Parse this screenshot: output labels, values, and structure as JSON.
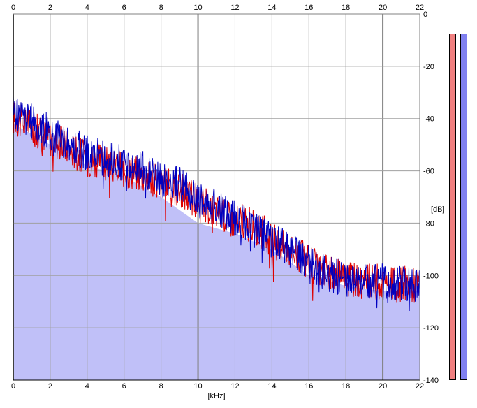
{
  "chart_data": {
    "type": "area",
    "xlabel": "[kHz]",
    "ylabel": "[dB]",
    "xlim": [
      0,
      22
    ],
    "ylim": [
      -140,
      0
    ],
    "x_ticks": [
      "0",
      "2",
      "4",
      "6",
      "8",
      "10",
      "12",
      "14",
      "16",
      "18",
      "20",
      "22"
    ],
    "y_ticks": [
      "0",
      "-20",
      "-40",
      "-60",
      "-80",
      "-100",
      "-120",
      "-140"
    ],
    "grid": true,
    "colors": {
      "left_channel": "#dd0000",
      "right_channel": "#0000c0",
      "fill": "#c0c0f8",
      "background": "#ffffff",
      "grid": "#a0a0a0",
      "major_grid": "#808080"
    },
    "series": [
      {
        "x": [
          0,
          0.5,
          1,
          1.5,
          2,
          2.5,
          3,
          3.5,
          4,
          4.5,
          5,
          5.5,
          6,
          6.5,
          7,
          7.5,
          8,
          8.5,
          9,
          9.5,
          10,
          10.5,
          11,
          11.5,
          12,
          12.5,
          13,
          13.5,
          14,
          14.5,
          15,
          15.5,
          16,
          16.5,
          17,
          17.5,
          18,
          18.5,
          19,
          19.5,
          20,
          20.5,
          21,
          21.5,
          22
        ],
        "y": [
          -40,
          -42,
          -44,
          -46,
          -48,
          -50,
          -52,
          -54,
          -56,
          -57,
          -58,
          -59,
          -60,
          -61,
          -62,
          -64,
          -66,
          -67,
          -68,
          -70,
          -73,
          -74,
          -76,
          -78,
          -80,
          -80,
          -82,
          -84,
          -87,
          -89,
          -91,
          -93,
          -96,
          -98,
          -100,
          -101,
          -102,
          -102,
          -103,
          -103,
          -103,
          -104,
          -104,
          -104,
          -104
        ]
      },
      {
        "x": [
          0,
          0.5,
          1,
          1.5,
          2,
          2.5,
          3,
          3.5,
          4,
          4.5,
          5,
          5.5,
          6,
          6.5,
          7,
          7.5,
          8,
          8.5,
          9,
          9.5,
          10,
          10.5,
          11,
          11.5,
          12,
          12.5,
          13,
          13.5,
          14,
          14.5,
          15,
          15.5,
          16,
          16.5,
          17,
          17.5,
          18,
          18.5,
          19,
          19.5,
          20,
          20.5,
          21,
          21.5,
          22
        ],
        "y": [
          -38,
          -40,
          -42,
          -44,
          -46,
          -48,
          -50,
          -52,
          -54,
          -55,
          -56,
          -57,
          -58,
          -59,
          -60,
          -62,
          -64,
          -65,
          -66,
          -68,
          -72,
          -73,
          -75,
          -77,
          -79,
          -80,
          -83,
          -85,
          -87,
          -89,
          -91,
          -93,
          -96,
          -98,
          -100,
          -101,
          -102,
          -102,
          -103,
          -103,
          -103,
          -104,
          -104,
          -104,
          -104
        ]
      }
    ],
    "fill_floor": [
      {
        "x": 0,
        "y": -42
      },
      {
        "x": 2,
        "y": -50
      },
      {
        "x": 4,
        "y": -58
      },
      {
        "x": 6,
        "y": -62
      },
      {
        "x": 8,
        "y": -70
      },
      {
        "x": 10,
        "y": -80
      },
      {
        "x": 12,
        "y": -84
      },
      {
        "x": 14,
        "y": -90
      },
      {
        "x": 16,
        "y": -100
      },
      {
        "x": 18,
        "y": -104
      },
      {
        "x": 20,
        "y": -106
      },
      {
        "x": 22,
        "y": -106
      }
    ],
    "level_meters": [
      {
        "channel": "left",
        "color": "#f08080"
      },
      {
        "channel": "right",
        "color": "#8080f0"
      }
    ]
  }
}
